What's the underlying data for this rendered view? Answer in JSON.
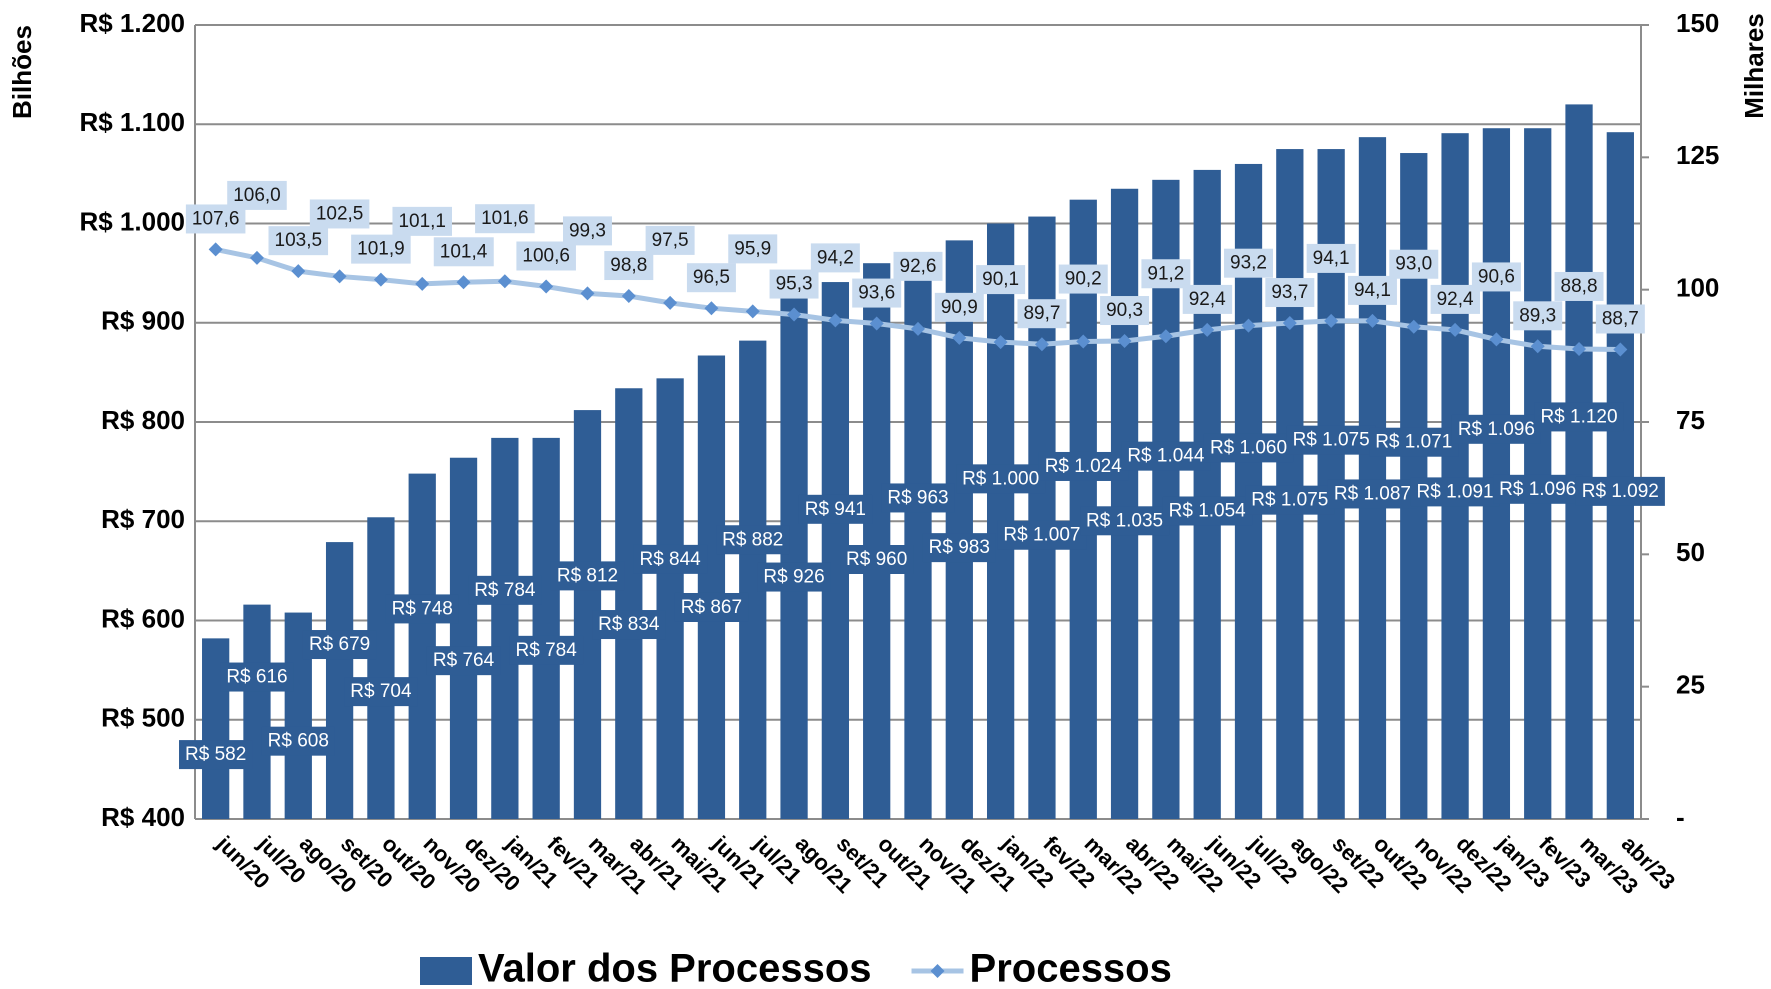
{
  "chart_data": {
    "type": "combo",
    "y_label": "Bilhões",
    "y2_label": "Milhares",
    "categories": [
      "jun/20",
      "jul/20",
      "ago/20",
      "set/20",
      "out/20",
      "nov/20",
      "dez/20",
      "jan/21",
      "fev/21",
      "mar/21",
      "abr/21",
      "mai/21",
      "jun/21",
      "jul/21",
      "ago/21",
      "set/21",
      "out/21",
      "nov/21",
      "dez/21",
      "jan/22",
      "fev/22",
      "mar/22",
      "abr/22",
      "mai/22",
      "jun/22",
      "jul/22",
      "ago/22",
      "set/22",
      "out/22",
      "nov/22",
      "dez/22",
      "jan/23",
      "fev/23",
      "mar/23",
      "abr/23"
    ],
    "series": [
      {
        "name": "Valor dos Processos",
        "type": "bar",
        "color": "#2f5d95",
        "values": [
          582,
          616,
          608,
          679,
          704,
          748,
          764,
          784,
          784,
          812,
          834,
          844,
          867,
          882,
          926,
          941,
          960,
          963,
          983,
          1000,
          1007,
          1024,
          1035,
          1044,
          1054,
          1060,
          1075,
          1075,
          1087,
          1071,
          1091,
          1096,
          1096,
          1120,
          1092
        ],
        "value_labels": [
          "R$ 582",
          "R$ 616",
          "R$ 608",
          "R$ 679",
          "R$ 704",
          "R$ 748",
          "R$ 764",
          "R$ 784",
          "R$ 784",
          "R$ 812",
          "R$ 834",
          "R$ 844",
          "R$ 867",
          "R$ 882",
          "R$ 926",
          "R$ 941",
          "R$ 960",
          "R$ 963",
          "R$ 983",
          "R$ 1.000",
          "R$ 1.007",
          "R$ 1.024",
          "R$ 1.035",
          "R$ 1.044",
          "R$ 1.054",
          "R$ 1.060",
          "R$ 1.075",
          "R$ 1.075",
          "R$ 1.087",
          "R$ 1.071",
          "R$ 1.091",
          "R$ 1.096",
          "R$ 1.096",
          "R$ 1.120",
          "R$ 1.092"
        ]
      },
      {
        "name": "Processos",
        "type": "line",
        "axis": "y2",
        "color": "#a7c4e4",
        "values": [
          107.6,
          106.0,
          103.5,
          102.5,
          101.9,
          101.1,
          101.4,
          101.6,
          100.6,
          99.3,
          98.8,
          97.5,
          96.5,
          95.9,
          95.3,
          94.2,
          93.6,
          92.6,
          90.9,
          90.1,
          89.7,
          90.2,
          90.3,
          91.2,
          92.4,
          93.2,
          93.7,
          94.1,
          94.1,
          93.0,
          92.4,
          90.6,
          89.3,
          88.8,
          88.7
        ],
        "value_labels": [
          "107,6",
          "106,0",
          "103,5",
          "102,5",
          "101,9",
          "101,1",
          "101,4",
          "101,6",
          "100,6",
          "99,3",
          "98,8",
          "97,5",
          "96,5",
          "95,9",
          "95,3",
          "94,2",
          "93,6",
          "92,6",
          "90,9",
          "90,1",
          "89,7",
          "90,2",
          "90,3",
          "91,2",
          "92,4",
          "93,2",
          "93,7",
          "94,1",
          "94,1",
          "93,0",
          "92,4",
          "90,6",
          "89,3",
          "88,8",
          "88,7"
        ]
      }
    ],
    "ylim": [
      400,
      1200
    ],
    "yticks": [
      {
        "value": 400,
        "label": "R$ 400"
      },
      {
        "value": 500,
        "label": "R$ 500"
      },
      {
        "value": 600,
        "label": "R$ 600"
      },
      {
        "value": 700,
        "label": "R$ 700"
      },
      {
        "value": 800,
        "label": "R$ 800"
      },
      {
        "value": 900,
        "label": "R$ 900"
      },
      {
        "value": 1000,
        "label": "R$ 1.000"
      },
      {
        "value": 1100,
        "label": "R$ 1.100"
      },
      {
        "value": 1200,
        "label": "R$ 1.200"
      }
    ],
    "y2lim": [
      0,
      150
    ],
    "y2ticks": [
      {
        "value": 0,
        "label": "-"
      },
      25,
      50,
      75,
      100,
      125,
      150
    ],
    "grid": true,
    "legend": "bottom"
  }
}
